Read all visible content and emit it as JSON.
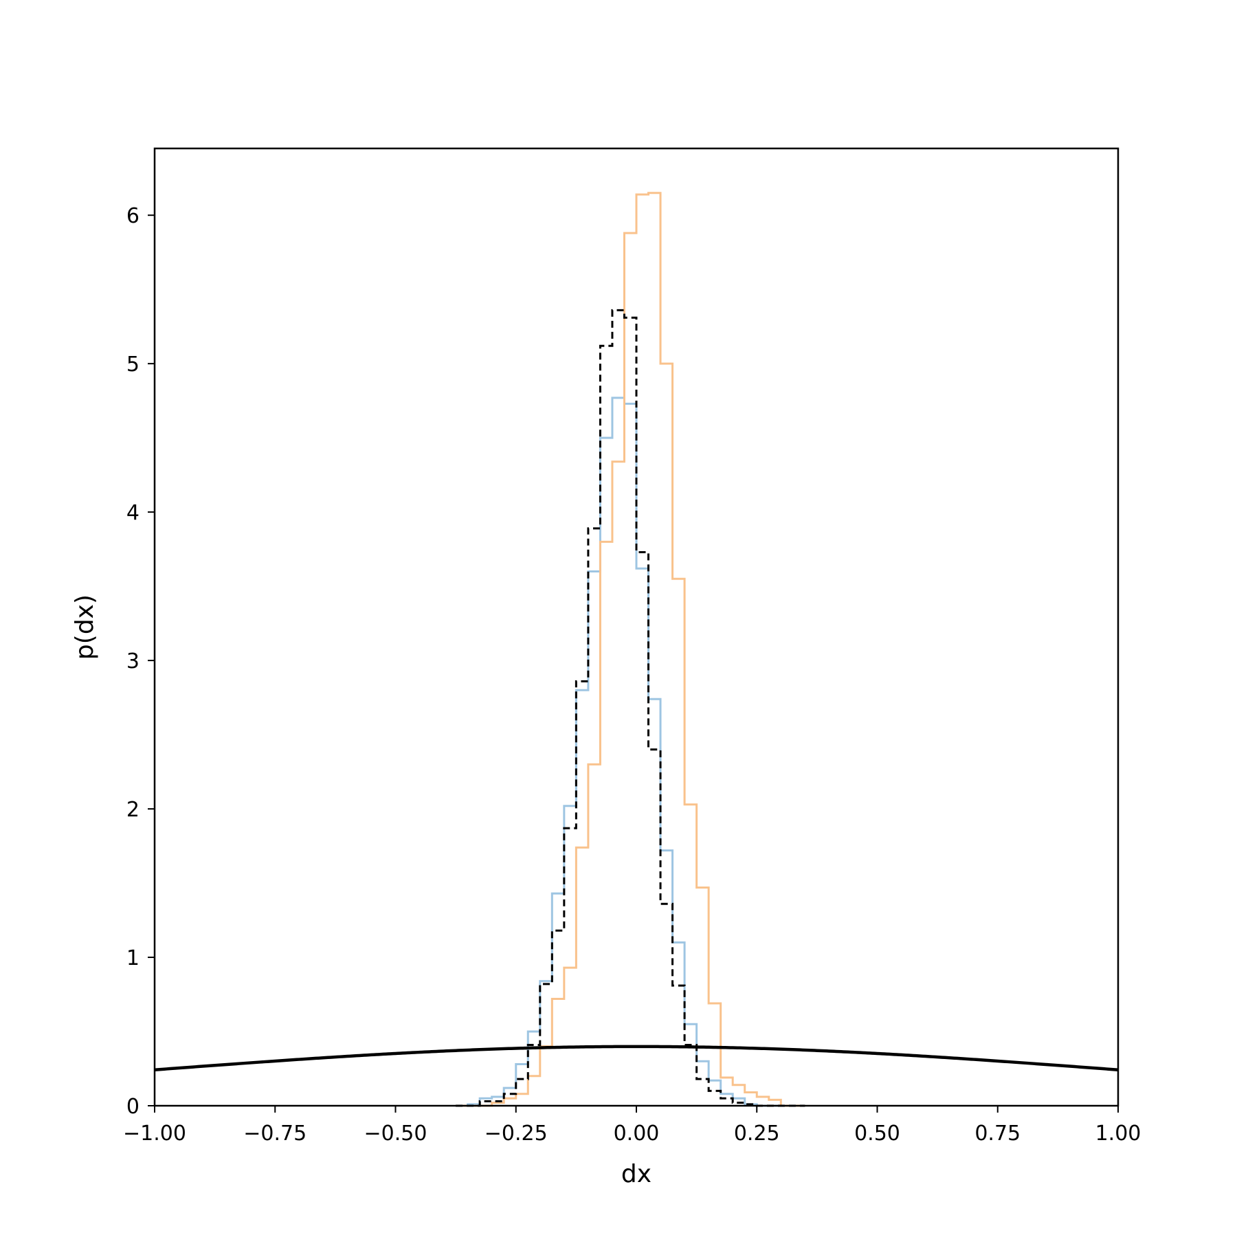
{
  "chart_data": {
    "type": "histogram",
    "title": "",
    "xlabel": "dx",
    "ylabel": "p(dx)",
    "xlim": [
      -1.0,
      1.0
    ],
    "ylim": [
      0,
      6.45
    ],
    "grid": false,
    "legend": "none",
    "x_ticks": [
      -1.0,
      -0.75,
      -0.5,
      -0.25,
      0.0,
      0.25,
      0.5,
      0.75,
      1.0
    ],
    "x_tick_labels": [
      "−1.00",
      "−0.75",
      "−0.50",
      "−0.25",
      "0.00",
      "0.25",
      "0.50",
      "0.75",
      "1.00"
    ],
    "y_ticks": [
      0,
      1,
      2,
      3,
      4,
      5,
      6
    ],
    "y_tick_labels": [
      "0",
      "1",
      "2",
      "3",
      "4",
      "5",
      "6"
    ],
    "bin_edges": [
      -0.375,
      -0.35,
      -0.325,
      -0.3,
      -0.275,
      -0.25,
      -0.225,
      -0.2,
      -0.175,
      -0.15,
      -0.125,
      -0.1,
      -0.075,
      -0.05,
      -0.025,
      0.0,
      0.025,
      0.05,
      0.075,
      0.1,
      0.125,
      0.15,
      0.175,
      0.2,
      0.225,
      0.25,
      0.275,
      0.3,
      0.325,
      0.35
    ],
    "series": [
      {
        "style": "step",
        "color": "#9ec5e2",
        "values": [
          0.0,
          0.01,
          0.05,
          0.06,
          0.12,
          0.28,
          0.5,
          0.84,
          1.43,
          2.02,
          2.8,
          3.6,
          4.5,
          4.77,
          4.73,
          3.62,
          2.74,
          1.72,
          1.1,
          0.55,
          0.3,
          0.17,
          0.08,
          0.05,
          0.01,
          0.0,
          0.0,
          0.0,
          0.0
        ]
      },
      {
        "style": "step",
        "color": "#f9c28c",
        "values": [
          0.0,
          0.0,
          0.0,
          0.02,
          0.05,
          0.08,
          0.2,
          0.4,
          0.72,
          0.93,
          1.74,
          2.3,
          3.8,
          4.34,
          5.88,
          6.14,
          6.15,
          5.0,
          3.55,
          2.03,
          1.47,
          0.69,
          0.19,
          0.14,
          0.09,
          0.06,
          0.04,
          0.0,
          0.0
        ]
      },
      {
        "style": "step-dashed",
        "color": "#000000",
        "values": [
          0.0,
          0.0,
          0.03,
          0.03,
          0.08,
          0.18,
          0.41,
          0.82,
          1.18,
          1.87,
          2.86,
          3.89,
          5.12,
          5.36,
          5.31,
          3.73,
          2.4,
          1.36,
          0.81,
          0.41,
          0.18,
          0.1,
          0.05,
          0.02,
          0.01,
          0.0,
          0.0,
          0.0,
          0.0
        ]
      },
      {
        "style": "line",
        "color": "#000000",
        "function": "normal_pdf",
        "mean": 0.0,
        "std": 1.0
      }
    ]
  }
}
